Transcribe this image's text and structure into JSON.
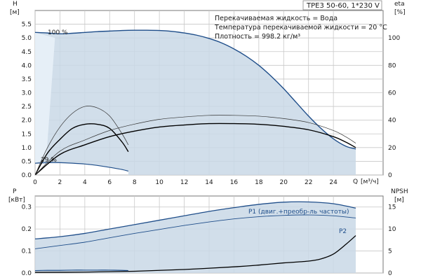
{
  "chart_data": [
    {
      "type": "line",
      "title": "TPE3 50-60, 1*230 V",
      "info_lines": [
        "Перекачиваемая жидкость = Вода",
        "Температура перекачиваемой жидкости = 20 °C",
        "Плотность = 998.2 кг/м³"
      ],
      "ylabel": "H",
      "yunit": "[м]",
      "y2label": "eta",
      "y2unit": "[%]",
      "xlabel": "Q",
      "xunit": "[м³/ч]",
      "xlim": [
        0,
        28
      ],
      "ylim": [
        0,
        6
      ],
      "y2lim": [
        0,
        120
      ],
      "xticks": [
        "0",
        "2",
        "4",
        "6",
        "8",
        "10",
        "12",
        "14",
        "16",
        "18",
        "20",
        "22",
        "24"
      ],
      "yticks": [
        "0.0",
        "0.5",
        "1.0",
        "1.5",
        "2.0",
        "2.5",
        "3.0",
        "3.5",
        "4.0",
        "4.5",
        "5.0",
        "5.5"
      ],
      "y2ticks": [
        "0",
        "20",
        "40",
        "60",
        "80",
        "100"
      ],
      "grid": true,
      "annotations": [
        "100 %",
        "29 %"
      ],
      "series": [
        {
          "name": "100 %",
          "x": [
            0,
            1,
            2,
            3,
            4,
            5,
            6,
            7,
            8,
            9,
            10,
            11,
            12,
            13,
            14,
            15,
            16,
            17,
            18,
            19,
            20,
            21,
            22,
            23,
            24,
            25,
            25.8
          ],
          "values": [
            5.2,
            5.18,
            5.15,
            5.17,
            5.2,
            5.23,
            5.25,
            5.27,
            5.28,
            5.28,
            5.27,
            5.24,
            5.18,
            5.1,
            4.98,
            4.82,
            4.6,
            4.33,
            4.0,
            3.6,
            3.15,
            2.65,
            2.15,
            1.7,
            1.32,
            1.05,
            0.95
          ]
        },
        {
          "name": "29 %",
          "x": [
            0,
            1,
            2,
            3,
            4,
            5,
            6,
            7,
            7.5
          ],
          "values": [
            0.43,
            0.45,
            0.45,
            0.43,
            0.4,
            0.35,
            0.28,
            0.2,
            0.14
          ]
        },
        {
          "name": "",
          "axis": "eta",
          "x": [
            0,
            2,
            4,
            6,
            8,
            10,
            12,
            14,
            16,
            18,
            20,
            22,
            24,
            25,
            25.8
          ],
          "values": [
            0,
            15,
            22,
            28,
            32,
            35,
            36.5,
            37.5,
            37.5,
            37,
            35.5,
            33,
            28,
            24,
            20
          ]
        },
        {
          "name": "",
          "axis": "eta",
          "x": [
            0,
            1,
            2,
            3,
            4,
            5,
            6,
            7,
            7.5
          ],
          "values": [
            0,
            16,
            26,
            34,
            37,
            37,
            34,
            24,
            17
          ]
        }
      ]
    },
    {
      "type": "line",
      "ylabel": "P",
      "yunit": "[кВт]",
      "y2label": "NPSH",
      "y2unit": "[м]",
      "ylim": [
        0,
        0.35
      ],
      "y2lim": [
        0,
        17.5
      ],
      "yticks": [
        "0.0",
        "0.1",
        "0.2",
        "0.3"
      ],
      "y2ticks": [
        "0",
        "5",
        "10",
        "15"
      ],
      "grid": true,
      "series": [
        {
          "name": "P1 (двиг.+преобр-ль частоты)",
          "x": [
            0,
            2,
            4,
            6,
            8,
            10,
            12,
            14,
            16,
            18,
            20,
            22,
            24,
            25.8
          ],
          "values": [
            0.155,
            0.165,
            0.18,
            0.2,
            0.22,
            0.24,
            0.26,
            0.28,
            0.297,
            0.312,
            0.322,
            0.323,
            0.315,
            0.295
          ]
        },
        {
          "name": "P2",
          "x": [
            0,
            2,
            4,
            6,
            8,
            10,
            12,
            14,
            16,
            18,
            20,
            22,
            24,
            25.8
          ],
          "values": [
            0.11,
            0.125,
            0.14,
            0.16,
            0.18,
            0.198,
            0.216,
            0.232,
            0.246,
            0.256,
            0.262,
            0.264,
            0.26,
            0.25
          ]
        },
        {
          "name": "",
          "axis": "npsh",
          "x": [
            0,
            4,
            8,
            12,
            16,
            18,
            20,
            22,
            23,
            24,
            25,
            25.8
          ],
          "values": [
            0.15,
            0.2,
            0.4,
            0.8,
            1.4,
            1.8,
            2.3,
            2.7,
            3.2,
            4.3,
            6.5,
            8.5
          ]
        },
        {
          "name": "",
          "x": [
            0,
            1,
            2,
            3,
            4,
            5,
            6,
            7,
            7.5
          ],
          "values": [
            0.011,
            0.012,
            0.012,
            0.013,
            0.013,
            0.013,
            0.013,
            0.012,
            0.011
          ]
        }
      ]
    }
  ]
}
